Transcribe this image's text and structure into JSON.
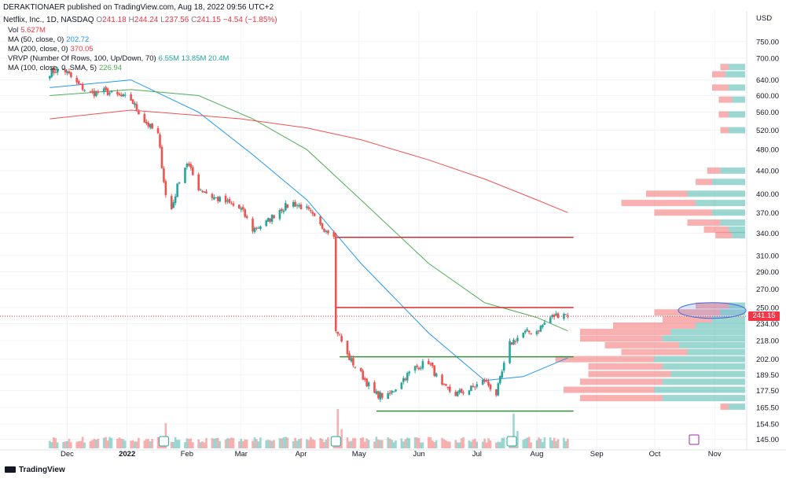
{
  "publisher_line": "DERAKTIONAER published on TradingView.com, Aug 18, 2022 09:56 UTC+2",
  "symbol_line": {
    "name": "Netflix, Inc., 1D, NASDAQ",
    "o_label": "O",
    "o": "241.18",
    "h_label": "H",
    "h": "244.24",
    "l_label": "L",
    "l": "237.56",
    "c_label": "C",
    "c": "241.15",
    "chg": "−4.54 (−1.85%)"
  },
  "indicators": [
    {
      "label": "Vol",
      "value": "5.627M",
      "color": "#f23645"
    },
    {
      "label": "MA (50, close, 0)",
      "value": "202.72",
      "color": "#2196f3"
    },
    {
      "label": "MA (200, close, 0)",
      "value": "370.05",
      "color": "#f23645"
    },
    {
      "label": "VRVP (Number Of Rows, 100, Up/Down, 70)",
      "value": "6.55M  13.85M  20.4M",
      "color": "#26a69a"
    },
    {
      "label": "MA (100, close, 0, SMA, 5)",
      "value": "226.94",
      "color": "#4caf50"
    }
  ],
  "currency": "USD",
  "last_price": "241.15",
  "footer": "TradingView",
  "colors": {
    "up": "#26a69a",
    "down": "#ef5350",
    "ma50": "#2196f3",
    "ma100": "#4caf50",
    "ma200": "#ef5350",
    "level": "#d32f2f",
    "range": "#388e3c"
  },
  "chart_data": {
    "type": "candlestick",
    "scale": "log",
    "ylim": [
      140,
      800
    ],
    "y_ticks": [
      145.0,
      154.5,
      165.5,
      177.5,
      189.5,
      202.0,
      218.0,
      234.0,
      250.0,
      270.0,
      290.0,
      310.0,
      340.0,
      370.0,
      400.0,
      440.0,
      480.0,
      520.0,
      560.0,
      600.0,
      640.0,
      700.0,
      750.0
    ],
    "y_tick_labels": [
      "145.00",
      "154.50",
      "165.50",
      "177.50",
      "189.50",
      "202.00",
      "218.00",
      "234.00",
      "250.00",
      "270.00",
      "290.00",
      "310.00",
      "340.00",
      "370.00",
      "400.00",
      "440.00",
      "480.00",
      "520.00",
      "560.00",
      "600.00",
      "640.00",
      "700.00",
      "750.00"
    ],
    "x_tick_labels": [
      "Dec",
      "2022",
      "Feb",
      "Mar",
      "Apr",
      "May",
      "Jun",
      "Jul",
      "Aug",
      "Sep",
      "Oct",
      "Nov"
    ],
    "price_path": [
      [
        "2021-11-22",
        660
      ],
      [
        "2021-11-29",
        670
      ],
      [
        "2021-12-06",
        630
      ],
      [
        "2021-12-13",
        605
      ],
      [
        "2021-12-20",
        610
      ],
      [
        "2021-12-27",
        600
      ],
      [
        "2022-01-03",
        590
      ],
      [
        "2022-01-10",
        540
      ],
      [
        "2022-01-17",
        510
      ],
      [
        "2022-01-21",
        397
      ],
      [
        "2022-01-24",
        375
      ],
      [
        "2022-01-28",
        425
      ],
      [
        "2022-02-01",
        455
      ],
      [
        "2022-02-07",
        410
      ],
      [
        "2022-02-14",
        395
      ],
      [
        "2022-02-22",
        385
      ],
      [
        "2022-03-01",
        375
      ],
      [
        "2022-03-07",
        345
      ],
      [
        "2022-03-14",
        355
      ],
      [
        "2022-03-21",
        375
      ],
      [
        "2022-03-28",
        385
      ],
      [
        "2022-04-04",
        375
      ],
      [
        "2022-04-11",
        350
      ],
      [
        "2022-04-18",
        340
      ],
      [
        "2022-04-20",
        226
      ],
      [
        "2022-04-25",
        205
      ],
      [
        "2022-05-02",
        190
      ],
      [
        "2022-05-09",
        175
      ],
      [
        "2022-05-16",
        173
      ],
      [
        "2022-05-23",
        185
      ],
      [
        "2022-05-30",
        195
      ],
      [
        "2022-06-06",
        200
      ],
      [
        "2022-06-13",
        180
      ],
      [
        "2022-06-20",
        175
      ],
      [
        "2022-06-27",
        178
      ],
      [
        "2022-07-05",
        185
      ],
      [
        "2022-07-11",
        175
      ],
      [
        "2022-07-18",
        215
      ],
      [
        "2022-07-25",
        225
      ],
      [
        "2022-08-01",
        227
      ],
      [
        "2022-08-08",
        240
      ],
      [
        "2022-08-15",
        245
      ],
      [
        "2022-08-17",
        241
      ]
    ],
    "moving_averages": {
      "ma50": [
        [
          "2021-11-22",
          620
        ],
        [
          "2022-01-03",
          640
        ],
        [
          "2022-02-07",
          560
        ],
        [
          "2022-03-07",
          470
        ],
        [
          "2022-04-04",
          390
        ],
        [
          "2022-05-02",
          300
        ],
        [
          "2022-06-06",
          225
        ],
        [
          "2022-07-05",
          185
        ],
        [
          "2022-07-25",
          188
        ],
        [
          "2022-08-17",
          203
        ]
      ],
      "ma100": [
        [
          "2021-11-22",
          600
        ],
        [
          "2022-01-03",
          615
        ],
        [
          "2022-02-07",
          600
        ],
        [
          "2022-03-07",
          545
        ],
        [
          "2022-04-04",
          480
        ],
        [
          "2022-05-02",
          390
        ],
        [
          "2022-06-06",
          300
        ],
        [
          "2022-07-05",
          255
        ],
        [
          "2022-08-01",
          240
        ],
        [
          "2022-08-17",
          227
        ]
      ],
      "ma200": [
        [
          "2021-11-22",
          545
        ],
        [
          "2022-01-03",
          565
        ],
        [
          "2022-03-01",
          545
        ],
        [
          "2022-04-04",
          525
        ],
        [
          "2022-05-02",
          500
        ],
        [
          "2022-06-06",
          460
        ],
        [
          "2022-07-05",
          425
        ],
        [
          "2022-08-01",
          390
        ],
        [
          "2022-08-17",
          370
        ]
      ]
    },
    "horizontal_levels": [
      {
        "price": 334,
        "from": "2022-04-19",
        "to": "2022-08-20",
        "kind": "resistance"
      },
      {
        "price": 250,
        "from": "2022-04-19",
        "to": "2022-08-20",
        "kind": "resistance"
      },
      {
        "price": 204,
        "from": "2022-04-21",
        "to": "2022-08-20",
        "kind": "range-top"
      },
      {
        "price": 163,
        "from": "2022-05-10",
        "to": "2022-08-20",
        "kind": "range-bottom"
      }
    ],
    "volume_profile": [
      [
        675,
        0.1,
        0.05
      ],
      [
        655,
        0.12,
        0.08
      ],
      [
        620,
        0.1,
        0.1
      ],
      [
        590,
        0.08,
        0.08
      ],
      [
        555,
        0.1,
        0.06
      ],
      [
        520,
        0.1,
        0.05
      ],
      [
        440,
        0.15,
        0.08
      ],
      [
        420,
        0.2,
        0.1
      ],
      [
        400,
        0.35,
        0.25
      ],
      [
        385,
        0.3,
        0.45
      ],
      [
        370,
        0.2,
        0.35
      ],
      [
        355,
        0.15,
        0.2
      ],
      [
        345,
        0.1,
        0.15
      ],
      [
        337,
        0.08,
        0.1
      ],
      [
        252,
        0.1,
        0.2
      ],
      [
        245,
        0.15,
        0.4
      ],
      [
        238,
        0.2,
        0.3
      ],
      [
        232,
        0.3,
        0.5
      ],
      [
        226,
        0.45,
        0.55
      ],
      [
        220,
        0.5,
        0.5
      ],
      [
        214,
        0.4,
        0.45
      ],
      [
        208,
        0.35,
        0.4
      ],
      [
        202,
        0.55,
        0.6
      ],
      [
        196,
        0.5,
        0.45
      ],
      [
        190,
        0.45,
        0.5
      ],
      [
        184,
        0.5,
        0.5
      ],
      [
        178,
        0.55,
        0.55
      ],
      [
        172,
        0.5,
        0.5
      ],
      [
        166,
        0.1,
        0.05
      ]
    ],
    "volume_scale_max": 20.4,
    "volume": [
      [
        "2022-01-21",
        13
      ],
      [
        "2022-04-20",
        20.4
      ],
      [
        "2022-04-22",
        10
      ],
      [
        "2022-07-20",
        18
      ],
      [
        "2022-07-22",
        9
      ]
    ]
  }
}
